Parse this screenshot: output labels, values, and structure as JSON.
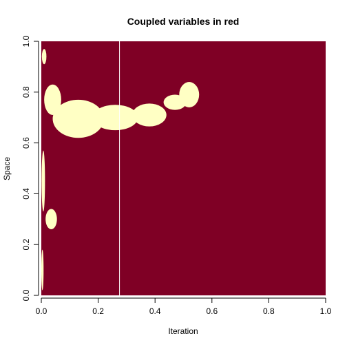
{
  "chart_data": {
    "type": "heatmap",
    "title": "Coupled variables in red",
    "xlabel": "Iteration",
    "ylabel": "Space",
    "xlim": [
      0,
      1
    ],
    "ylim": [
      0,
      1
    ],
    "x_ticks": [
      "0.0",
      "0.2",
      "0.4",
      "0.6",
      "0.8",
      "1.0"
    ],
    "y_ticks": [
      "0.0",
      "0.2",
      "0.4",
      "0.6",
      "0.8",
      "1.0"
    ],
    "colors": {
      "coupled": "#7f0025",
      "uncoupled": "#ffffc4"
    },
    "vertical_line_x": 0.275,
    "uncoupled_regions": [
      {
        "shape": "ellipse",
        "cx": 0.13,
        "cy": 0.695,
        "rx": 0.09,
        "ry": 0.075
      },
      {
        "shape": "ellipse",
        "cx": 0.26,
        "cy": 0.7,
        "rx": 0.08,
        "ry": 0.05
      },
      {
        "shape": "ellipse",
        "cx": 0.38,
        "cy": 0.71,
        "rx": 0.06,
        "ry": 0.045
      },
      {
        "shape": "ellipse",
        "cx": 0.47,
        "cy": 0.76,
        "rx": 0.04,
        "ry": 0.03
      },
      {
        "shape": "ellipse",
        "cx": 0.52,
        "cy": 0.79,
        "rx": 0.035,
        "ry": 0.05
      },
      {
        "shape": "ellipse",
        "cx": 0.04,
        "cy": 0.77,
        "rx": 0.03,
        "ry": 0.06
      },
      {
        "shape": "ellipse",
        "cx": 0.035,
        "cy": 0.3,
        "rx": 0.02,
        "ry": 0.04
      },
      {
        "shape": "ellipse",
        "cx": 0.01,
        "cy": 0.94,
        "rx": 0.008,
        "ry": 0.03
      },
      {
        "shape": "ellipse",
        "cx": 0.007,
        "cy": 0.45,
        "rx": 0.006,
        "ry": 0.12
      },
      {
        "shape": "ellipse",
        "cx": 0.004,
        "cy": 0.1,
        "rx": 0.004,
        "ry": 0.08
      }
    ]
  }
}
